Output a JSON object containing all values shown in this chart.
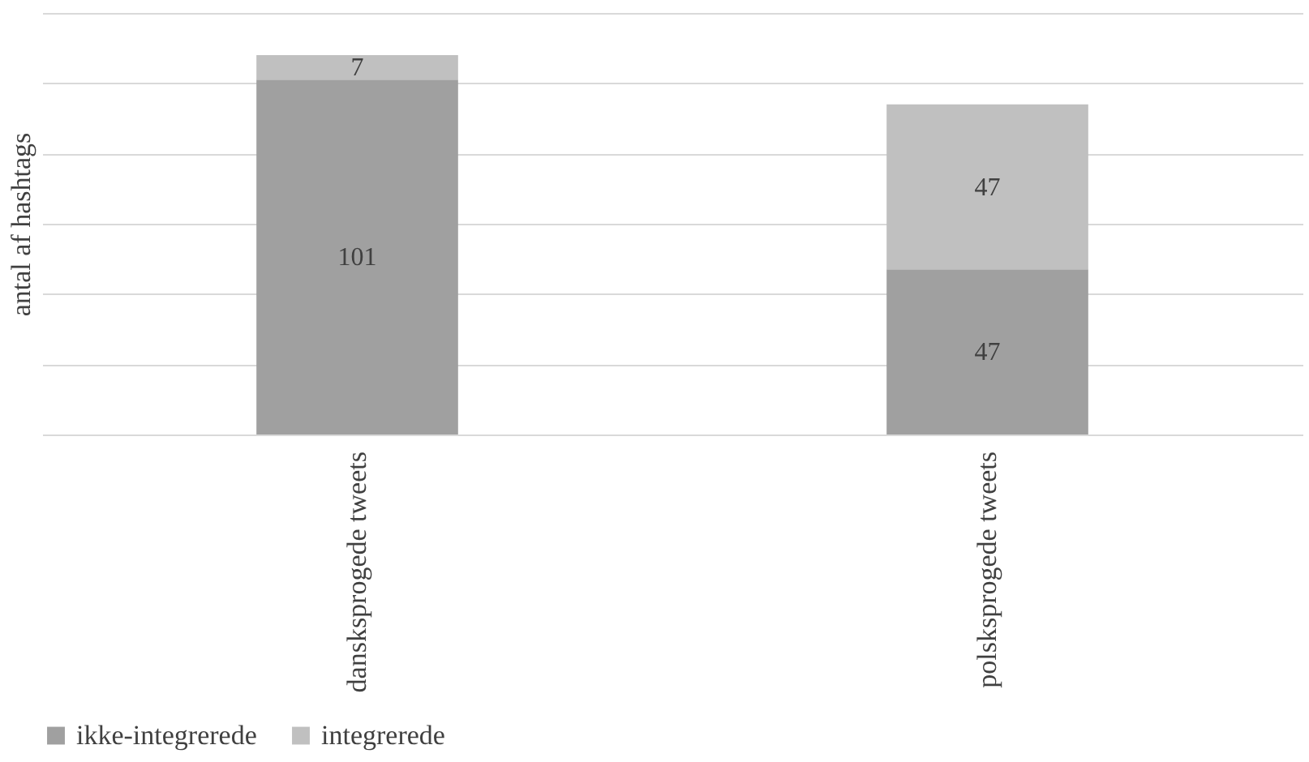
{
  "chart_data": {
    "type": "bar",
    "stacked": true,
    "ylabel": "antal af hashtags",
    "categories": [
      "dansksprogede tweets",
      "polsksprogede tweets"
    ],
    "series": [
      {
        "name": "ikke-integrerede",
        "color": "#a0a0a0",
        "values": [
          101,
          47
        ]
      },
      {
        "name": "integrerede",
        "color": "#c0c0c0",
        "values": [
          7,
          47
        ]
      }
    ],
    "ylim": [
      0,
      120
    ],
    "yticks": [
      {
        "value": 0,
        "label": null
      },
      {
        "value": 20,
        "label": null
      },
      {
        "value": 40,
        "label": null
      },
      {
        "value": 60,
        "label": null
      },
      {
        "value": 80,
        "label": null
      },
      {
        "value": 100,
        "label": null
      },
      {
        "value": 120,
        "label": null
      }
    ],
    "tick_labels": "x",
    "grid": "y",
    "data_labels": true,
    "legend": "bottom"
  }
}
